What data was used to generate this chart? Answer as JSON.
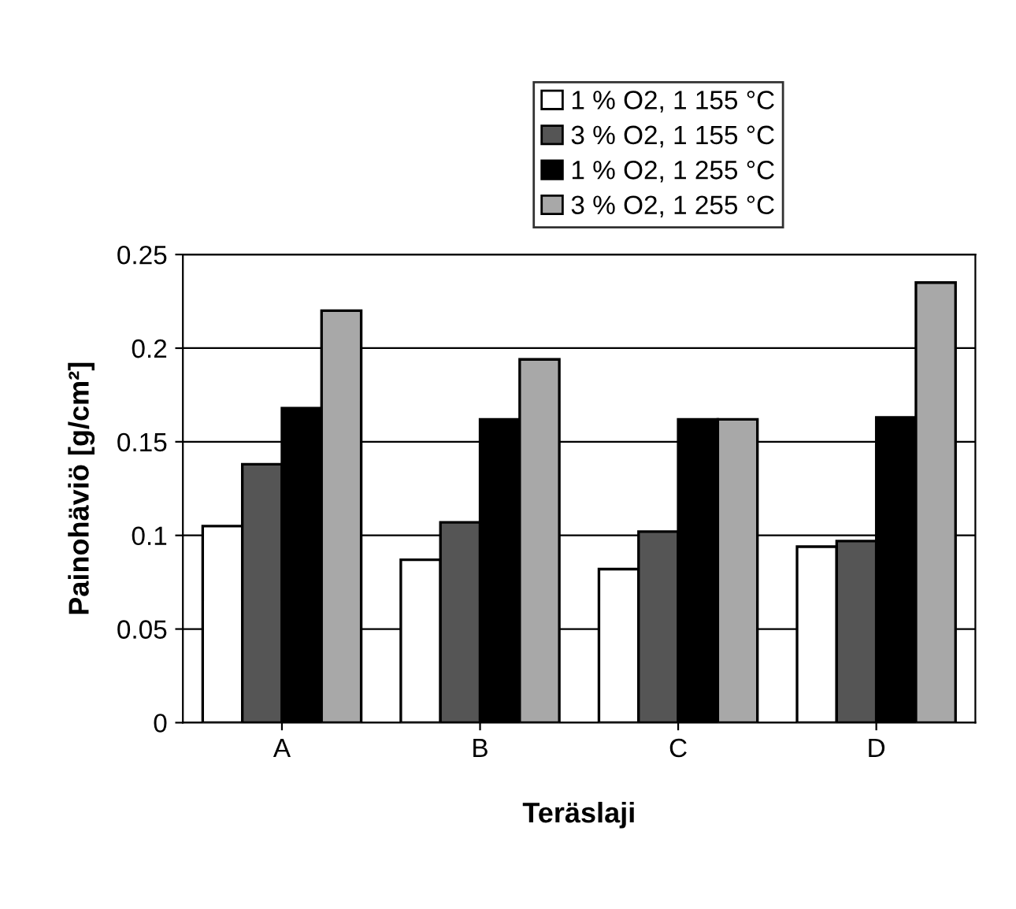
{
  "chart_data": {
    "type": "bar",
    "xlabel": "Teräslaji",
    "ylabel": "Painohäviö [g/cm²]",
    "categories": [
      "A",
      "B",
      "C",
      "D"
    ],
    "series": [
      {
        "name": "1 % O2, 1 155 °C",
        "color": "#ffffff",
        "values": [
          0.105,
          0.087,
          0.082,
          0.094
        ]
      },
      {
        "name": "3 % O2, 1 155 °C",
        "color": "#555555",
        "values": [
          0.138,
          0.107,
          0.102,
          0.097
        ]
      },
      {
        "name": "1 % O2, 1 255 °C",
        "color": "#000000",
        "values": [
          0.168,
          0.162,
          0.162,
          0.163
        ]
      },
      {
        "name": "3 % O2, 1 255 °C",
        "color": "#a8a8a8",
        "values": [
          0.22,
          0.194,
          0.162,
          0.235
        ]
      }
    ],
    "ylim": [
      0,
      0.25
    ],
    "yticks": [
      0,
      0.05,
      0.1,
      0.15,
      0.2,
      0.25
    ],
    "grid": "y",
    "legend": "top"
  }
}
